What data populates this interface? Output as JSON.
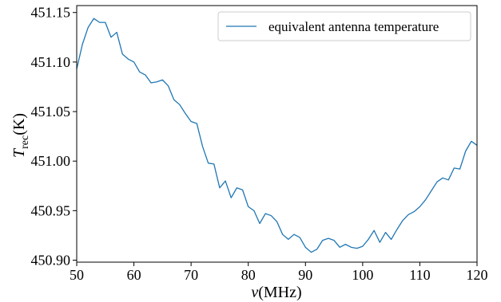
{
  "chart_data": {
    "type": "line",
    "title": "",
    "xlabel": {
      "main": "ν",
      "unit": "(MHz)"
    },
    "ylabel": {
      "main": "T",
      "subscript": "rec",
      "unit": "(K)"
    },
    "xlim": [
      50,
      120
    ],
    "ylim": [
      450.898,
      451.157
    ],
    "xticks": [
      50,
      60,
      70,
      80,
      90,
      100,
      110,
      120
    ],
    "yticks": [
      450.9,
      450.95,
      451.0,
      451.05,
      451.1,
      451.15
    ],
    "xtick_labels": [
      "50",
      "60",
      "70",
      "80",
      "90",
      "100",
      "110",
      "120"
    ],
    "ytick_labels": [
      "450.90",
      "450.95",
      "451.00",
      "451.05",
      "451.10",
      "451.15"
    ],
    "grid": false,
    "legend_position": "top-right",
    "series": [
      {
        "name": "equivalent antenna temperature",
        "color": "#1f77b4",
        "x": [
          50,
          51,
          52,
          53,
          54,
          55,
          56,
          57,
          58,
          59,
          60,
          61,
          62,
          63,
          64,
          65,
          66,
          67,
          68,
          69,
          70,
          71,
          72,
          73,
          74,
          75,
          76,
          77,
          78,
          79,
          80,
          81,
          82,
          83,
          84,
          85,
          86,
          87,
          88,
          89,
          90,
          91,
          92,
          93,
          94,
          95,
          96,
          97,
          98,
          99,
          100,
          101,
          102,
          103,
          104,
          105,
          106,
          107,
          108,
          109,
          110,
          111,
          112,
          113,
          114,
          115,
          116,
          117,
          118,
          119,
          120
        ],
        "y": [
          451.093,
          451.118,
          451.135,
          451.144,
          451.14,
          451.14,
          451.125,
          451.13,
          451.108,
          451.103,
          451.1,
          451.09,
          451.087,
          451.079,
          451.08,
          451.082,
          451.076,
          451.062,
          451.057,
          451.048,
          451.04,
          451.038,
          451.015,
          450.998,
          450.997,
          450.973,
          450.98,
          450.963,
          450.973,
          450.971,
          450.954,
          450.95,
          450.937,
          450.947,
          450.945,
          450.939,
          450.926,
          450.921,
          450.926,
          450.923,
          450.913,
          450.908,
          450.911,
          450.92,
          450.922,
          450.92,
          450.913,
          450.916,
          450.913,
          450.912,
          450.914,
          450.921,
          450.93,
          450.918,
          450.928,
          450.921,
          450.931,
          450.94,
          450.946,
          450.949,
          450.954,
          450.961,
          450.97,
          450.979,
          450.983,
          450.981,
          450.993,
          450.992,
          451.01,
          451.02,
          451.016
        ]
      }
    ]
  }
}
